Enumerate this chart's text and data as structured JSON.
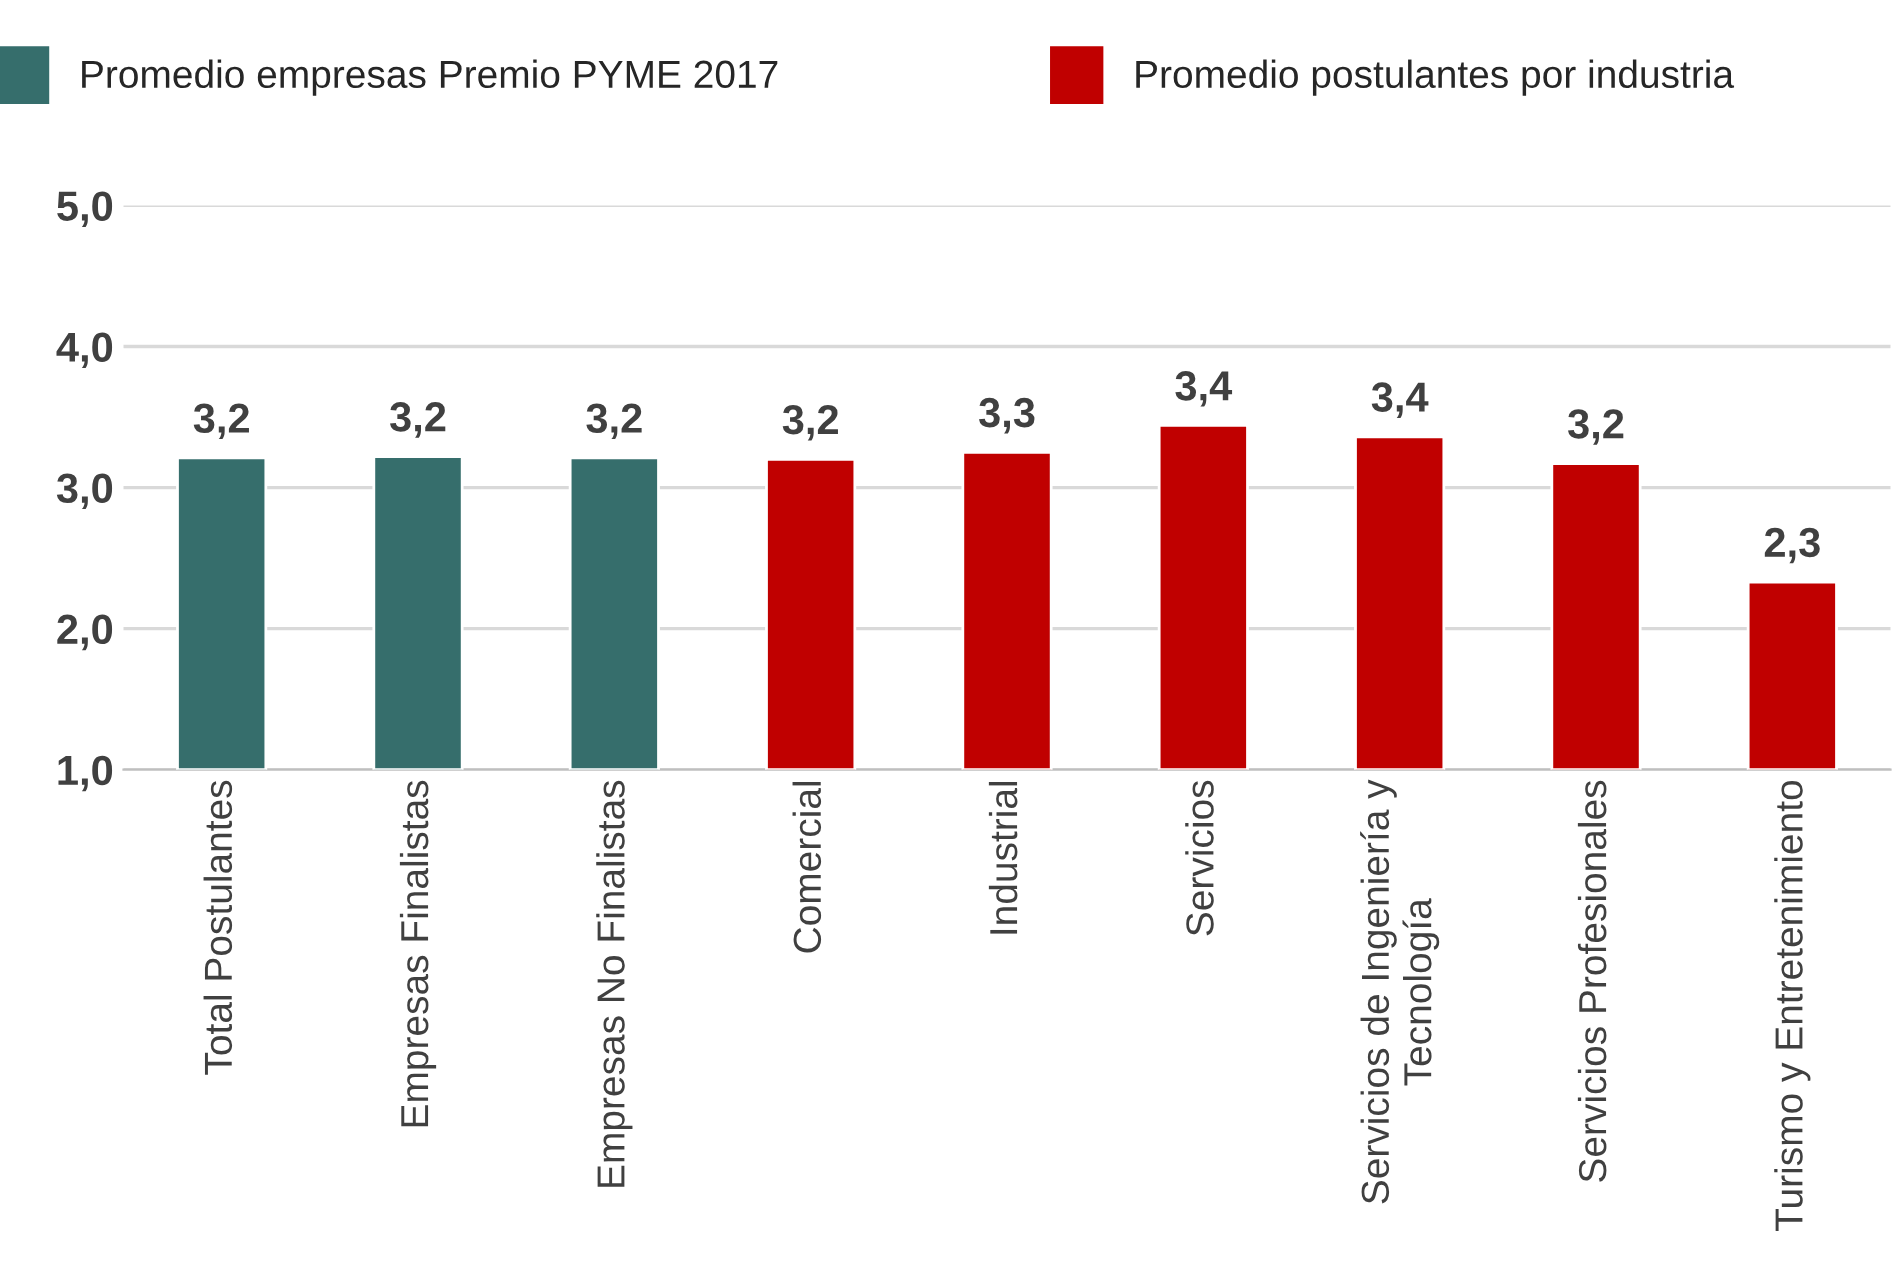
{
  "chart_data": {
    "type": "bar",
    "categories": [
      "Total Postulantes",
      "Empresas Finalistas",
      "Empresas No Finalistas",
      "Comercial",
      "Industrial",
      "Servicios",
      "Servicios de Ingeniería y\nTecnología",
      "Servicios Profesionales",
      "Turismo y Entretenimiento"
    ],
    "series": [
      {
        "name": "Promedio empresas Premio PYME 2017",
        "color": "#366e6c",
        "values": [
          3.21,
          3.22,
          3.21,
          null,
          null,
          null,
          null,
          null,
          null
        ],
        "value_labels": [
          "3,2",
          "3,2",
          "3,2",
          null,
          null,
          null,
          null,
          null,
          null
        ]
      },
      {
        "name": "Promedio postulantes por industria",
        "color": "#c00000",
        "values": [
          null,
          null,
          null,
          3.2,
          3.25,
          3.44,
          3.36,
          3.17,
          2.33
        ],
        "value_labels": [
          null,
          null,
          null,
          "3,2",
          "3,3",
          "3,4",
          "3,4",
          "3,2",
          "2,3"
        ]
      }
    ],
    "ylim": [
      1,
      5
    ],
    "yticks": [
      {
        "value": 1,
        "label": "1,0"
      },
      {
        "value": 2,
        "label": "2,0"
      },
      {
        "value": 3,
        "label": "3,0"
      },
      {
        "value": 4,
        "label": "4,0"
      },
      {
        "value": 5,
        "label": "5,0"
      }
    ],
    "grid": "y",
    "legend": "top"
  }
}
